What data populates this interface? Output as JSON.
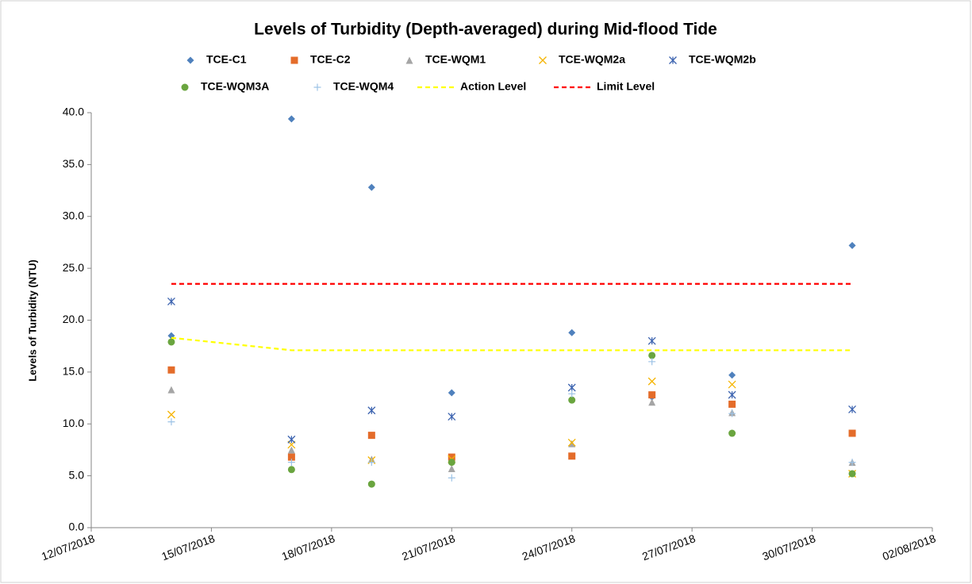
{
  "chart_data": {
    "type": "scatter",
    "title": "Levels of Turbidity (Depth-averaged) during Mid-flood Tide",
    "y_label": "Levels of Turbidity (NTU)",
    "x": [
      "2018-07-14",
      "2018-07-17",
      "2018-07-19",
      "2018-07-21",
      "2018-07-24",
      "2018-07-26",
      "2018-07-28",
      "2018-07-31"
    ],
    "series": [
      {
        "name": "TCE-C1",
        "color": "#4f81bd",
        "marker": "diamond",
        "values": [
          18.5,
          39.4,
          32.8,
          13.0,
          18.8,
          12.6,
          14.7,
          27.2
        ]
      },
      {
        "name": "TCE-C2",
        "color": "#e46c2a",
        "marker": "square",
        "values": [
          15.2,
          6.8,
          8.9,
          6.8,
          6.9,
          12.8,
          11.9,
          9.1
        ]
      },
      {
        "name": "TCE-WQM1",
        "color": "#a5a5a5",
        "marker": "triangle",
        "values": [
          13.3,
          7.5,
          6.6,
          5.7,
          8.1,
          12.1,
          11.1,
          6.3
        ]
      },
      {
        "name": "TCE-WQM2a",
        "color": "#f5b400",
        "marker": "x",
        "values": [
          10.9,
          8.0,
          6.5,
          6.6,
          8.2,
          14.1,
          13.8,
          5.2
        ]
      },
      {
        "name": "TCE-WQM2b",
        "color": "#3d64b0",
        "marker": "star",
        "values": [
          21.8,
          8.5,
          11.3,
          10.7,
          13.5,
          18.0,
          12.8,
          11.4
        ]
      },
      {
        "name": "TCE-WQM3A",
        "color": "#6aa53f",
        "marker": "circle",
        "values": [
          17.9,
          5.6,
          4.2,
          6.3,
          12.3,
          16.6,
          9.1,
          5.2
        ]
      },
      {
        "name": "TCE-WQM4",
        "color": "#9dc3e6",
        "marker": "plus",
        "values": [
          10.2,
          6.3,
          6.3,
          4.8,
          12.9,
          16.0,
          11.0,
          6.3
        ]
      },
      {
        "name": "Action Level",
        "color": "#ffff00",
        "marker": "dash",
        "values": [
          18.3,
          17.1,
          17.1,
          17.1,
          17.1,
          17.1,
          17.1,
          17.1
        ]
      },
      {
        "name": "Limit Level",
        "color": "#ff0000",
        "marker": "dash",
        "values": [
          23.5,
          23.5,
          23.5,
          23.5,
          23.5,
          23.5,
          23.5,
          23.5
        ]
      }
    ],
    "xlim": [
      "2018-07-12",
      "2018-08-02"
    ],
    "xticks": [
      {
        "value": "2018-07-12",
        "label": "12/07/2018"
      },
      {
        "value": "2018-07-15",
        "label": "15/07/2018"
      },
      {
        "value": "2018-07-18",
        "label": "18/07/2018"
      },
      {
        "value": "2018-07-21",
        "label": "21/07/2018"
      },
      {
        "value": "2018-07-24",
        "label": "24/07/2018"
      },
      {
        "value": "2018-07-27",
        "label": "27/07/2018"
      },
      {
        "value": "2018-07-30",
        "label": "30/07/2018"
      },
      {
        "value": "2018-08-02",
        "label": "02/08/2018"
      }
    ],
    "ylim": [
      0,
      40
    ],
    "yticks": [
      {
        "value": 0,
        "label": "0.0"
      },
      {
        "value": 5,
        "label": "5.0"
      },
      {
        "value": 10,
        "label": "10.0"
      },
      {
        "value": 15,
        "label": "15.0"
      },
      {
        "value": 20,
        "label": "20.0"
      },
      {
        "value": 25,
        "label": "25.0"
      },
      {
        "value": 30,
        "label": "30.0"
      },
      {
        "value": 35,
        "label": "35.0"
      },
      {
        "value": 40,
        "label": "40.0"
      }
    ],
    "grid": false,
    "legend": "top"
  }
}
